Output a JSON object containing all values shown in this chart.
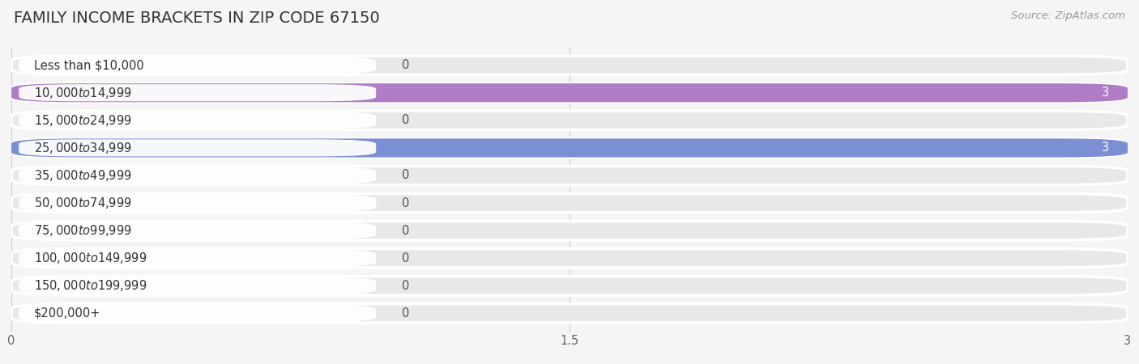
{
  "title": "FAMILY INCOME BRACKETS IN ZIP CODE 67150",
  "source": "Source: ZipAtlas.com",
  "categories": [
    "Less than $10,000",
    "$10,000 to $14,999",
    "$15,000 to $24,999",
    "$25,000 to $34,999",
    "$35,000 to $49,999",
    "$50,000 to $74,999",
    "$75,000 to $99,999",
    "$100,000 to $149,999",
    "$150,000 to $199,999",
    "$200,000+"
  ],
  "values": [
    0,
    3,
    0,
    3,
    0,
    0,
    0,
    0,
    0,
    0
  ],
  "bar_colors": [
    "#a8c8e8",
    "#b07cc6",
    "#7ececa",
    "#7b8fd4",
    "#f4a0b0",
    "#f5c98a",
    "#f4a8a8",
    "#a8b8e8",
    "#c8a8d8",
    "#80ccd4"
  ],
  "xlim": [
    0,
    3
  ],
  "xticks": [
    0,
    1.5,
    3
  ],
  "background_color": "#f5f5f5",
  "bar_bg_color": "#e8e8e8",
  "row_colors": [
    "#f0f0f0",
    "#e8e8e8"
  ],
  "title_fontsize": 14,
  "label_fontsize": 10.5,
  "tick_fontsize": 10.5,
  "source_fontsize": 9.5
}
